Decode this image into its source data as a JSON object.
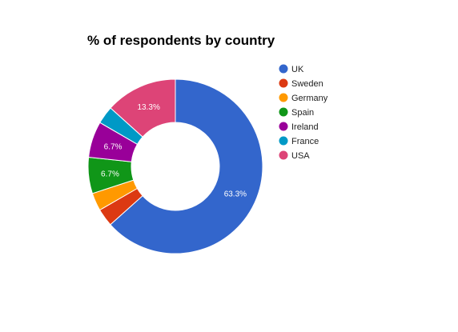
{
  "chart_data": {
    "type": "pie",
    "donut": true,
    "title": "% of respondents by country",
    "legend_position": "right",
    "slices": [
      {
        "label": "UK",
        "value": 63.3,
        "color": "#3366cc",
        "data_label": "63.3%"
      },
      {
        "label": "Sweden",
        "value": 3.3,
        "color": "#dc3912",
        "data_label": ""
      },
      {
        "label": "Germany",
        "value": 3.3,
        "color": "#ff9900",
        "data_label": ""
      },
      {
        "label": "Spain",
        "value": 6.7,
        "color": "#109618",
        "data_label": "6.7%"
      },
      {
        "label": "Ireland",
        "value": 6.7,
        "color": "#990099",
        "data_label": "6.7%"
      },
      {
        "label": "France",
        "value": 3.3,
        "color": "#0099c6",
        "data_label": ""
      },
      {
        "label": "USA",
        "value": 13.3,
        "color": "#dd4477",
        "data_label": "13.3%"
      }
    ]
  }
}
